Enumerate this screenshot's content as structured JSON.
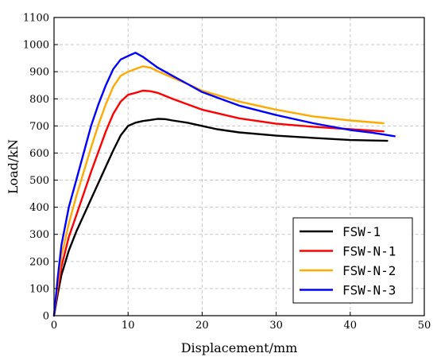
{
  "chart_data": {
    "type": "line",
    "title": "",
    "xlabel": "Displacement/mm",
    "ylabel": "Load/kN",
    "xlim": [
      0,
      50
    ],
    "ylim": [
      0,
      1100
    ],
    "x_ticks": [
      0,
      10,
      20,
      30,
      40,
      50
    ],
    "y_ticks": [
      0,
      100,
      200,
      300,
      400,
      500,
      600,
      700,
      800,
      900,
      1000,
      1100
    ],
    "grid": true,
    "legend_position": "bottom-right",
    "series": [
      {
        "name": "FSW-1",
        "color": "#000000",
        "points": [
          [
            0,
            0
          ],
          [
            0.5,
            80
          ],
          [
            1,
            150
          ],
          [
            2,
            240
          ],
          [
            3,
            310
          ],
          [
            4,
            370
          ],
          [
            5,
            430
          ],
          [
            6,
            490
          ],
          [
            7,
            550
          ],
          [
            8,
            610
          ],
          [
            9,
            665
          ],
          [
            10,
            700
          ],
          [
            11,
            712
          ],
          [
            12,
            718
          ],
          [
            13,
            722
          ],
          [
            14,
            726
          ],
          [
            15,
            725
          ],
          [
            16,
            720
          ],
          [
            18,
            712
          ],
          [
            20,
            700
          ],
          [
            22,
            688
          ],
          [
            25,
            676
          ],
          [
            30,
            664
          ],
          [
            35,
            656
          ],
          [
            40,
            648
          ],
          [
            45,
            645
          ]
        ]
      },
      {
        "name": "FSW-N-1",
        "color": "#ff0000",
        "points": [
          [
            0,
            0
          ],
          [
            0.5,
            100
          ],
          [
            1,
            180
          ],
          [
            2,
            290
          ],
          [
            3,
            370
          ],
          [
            4,
            450
          ],
          [
            5,
            530
          ],
          [
            6,
            605
          ],
          [
            7,
            680
          ],
          [
            8,
            745
          ],
          [
            9,
            790
          ],
          [
            10,
            815
          ],
          [
            11,
            822
          ],
          [
            12,
            830
          ],
          [
            13,
            828
          ],
          [
            14,
            822
          ],
          [
            16,
            800
          ],
          [
            18,
            780
          ],
          [
            20,
            760
          ],
          [
            25,
            728
          ],
          [
            30,
            708
          ],
          [
            35,
            697
          ],
          [
            40,
            688
          ],
          [
            44.5,
            680
          ]
        ]
      },
      {
        "name": "FSW-N-2",
        "color": "#ffaa00",
        "points": [
          [
            0,
            0
          ],
          [
            0.5,
            120
          ],
          [
            1,
            220
          ],
          [
            2,
            340
          ],
          [
            3,
            440
          ],
          [
            4,
            530
          ],
          [
            5,
            620
          ],
          [
            6,
            705
          ],
          [
            7,
            780
          ],
          [
            8,
            845
          ],
          [
            9,
            885
          ],
          [
            10,
            900
          ],
          [
            11,
            910
          ],
          [
            12,
            920
          ],
          [
            13,
            915
          ],
          [
            14,
            902
          ],
          [
            16,
            878
          ],
          [
            18,
            855
          ],
          [
            20,
            830
          ],
          [
            25,
            790
          ],
          [
            30,
            760
          ],
          [
            35,
            735
          ],
          [
            40,
            720
          ],
          [
            44.5,
            710
          ]
        ]
      },
      {
        "name": "FSW-N-3",
        "color": "#0000ff",
        "points": [
          [
            0,
            0
          ],
          [
            0.5,
            140
          ],
          [
            1,
            260
          ],
          [
            2,
            400
          ],
          [
            3,
            500
          ],
          [
            4,
            600
          ],
          [
            5,
            700
          ],
          [
            6,
            780
          ],
          [
            7,
            850
          ],
          [
            8,
            910
          ],
          [
            9,
            945
          ],
          [
            10,
            958
          ],
          [
            11,
            970
          ],
          [
            12,
            955
          ],
          [
            13,
            935
          ],
          [
            14,
            915
          ],
          [
            16,
            885
          ],
          [
            18,
            855
          ],
          [
            20,
            825
          ],
          [
            25,
            775
          ],
          [
            30,
            740
          ],
          [
            35,
            710
          ],
          [
            40,
            685
          ],
          [
            43,
            675
          ],
          [
            46,
            662
          ]
        ]
      }
    ]
  }
}
